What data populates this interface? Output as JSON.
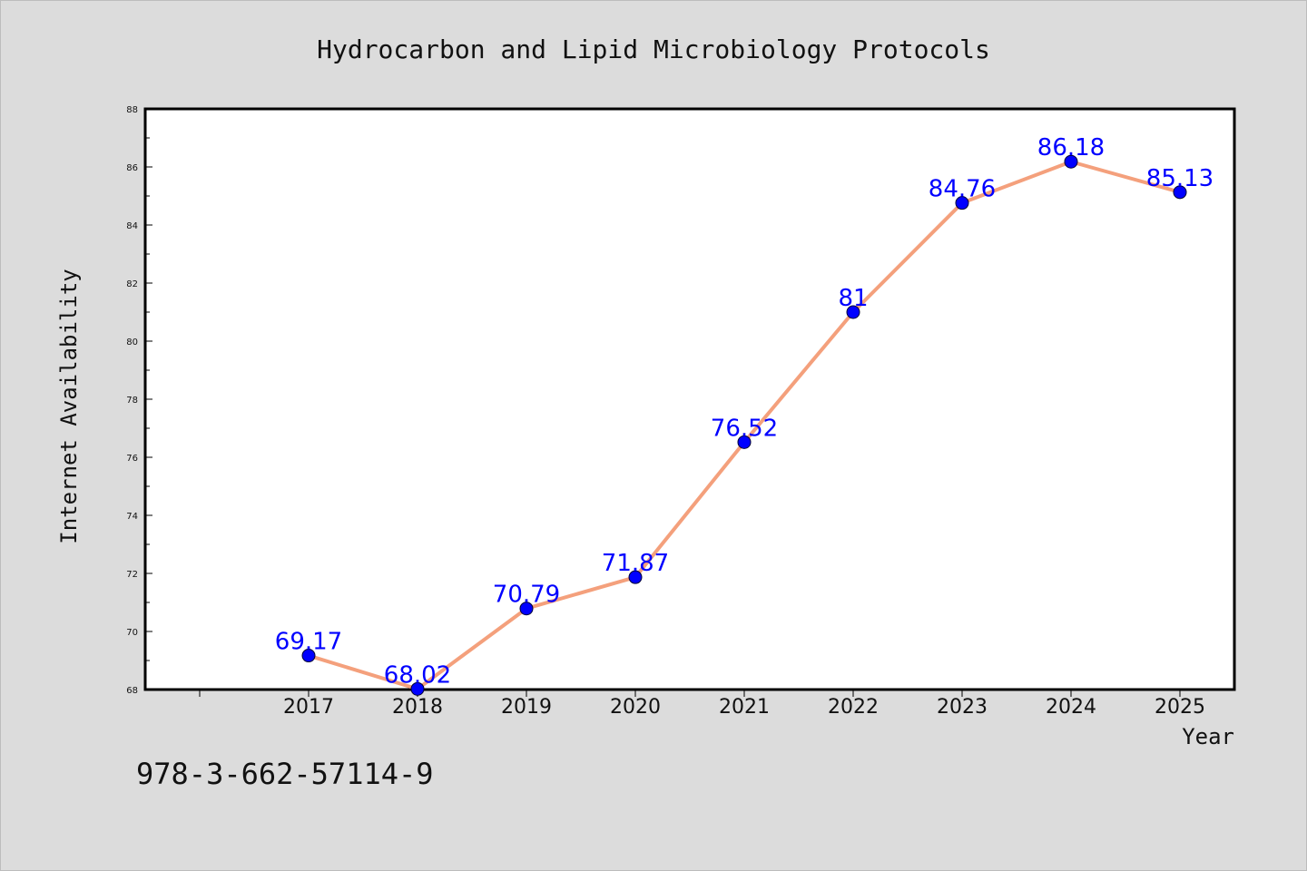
{
  "chart_data": {
    "type": "line",
    "title": "Hydrocarbon and Lipid Microbiology Protocols",
    "xlabel": "Year",
    "ylabel": "Internet Availability",
    "categories": [
      "2017",
      "2018",
      "2019",
      "2020",
      "2021",
      "2022",
      "2023",
      "2024",
      "2025"
    ],
    "values": [
      69.17,
      68.02,
      70.79,
      71.87,
      76.52,
      81,
      84.76,
      86.18,
      85.13
    ],
    "data_labels": [
      "69.17",
      "68.02",
      "70.79",
      "71.87",
      "76.52",
      "81",
      "84.76",
      "86.18",
      "85.13"
    ],
    "ylim": [
      68,
      88
    ],
    "yticks": [
      "68",
      "70",
      "72",
      "74",
      "76",
      "78",
      "80",
      "82",
      "84",
      "86",
      "88"
    ],
    "grid": false,
    "legend": "none",
    "line_color": "#f4a07c",
    "marker_color": "#0000ff"
  },
  "footer": {
    "isbn": "978-3-662-57114-9"
  },
  "colors": {
    "background": "#dcdcdc",
    "plot_background": "#ffffff"
  }
}
